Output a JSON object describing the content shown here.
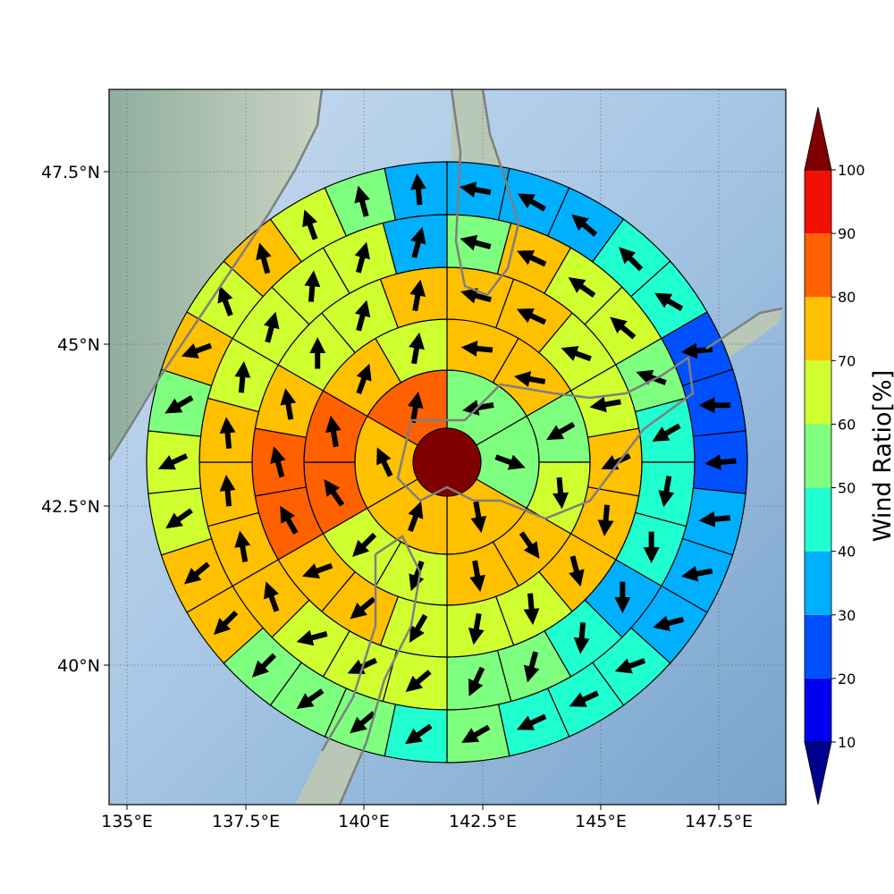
{
  "chart_data": {
    "type": "polar-sector-map",
    "colorbar": {
      "label": "Wind Ratio[%]",
      "ticks": [
        "10",
        "20",
        "30",
        "40",
        "50",
        "60",
        "70",
        "80",
        "90",
        "100"
      ],
      "levels": [
        0,
        10,
        20,
        30,
        40,
        50,
        60,
        70,
        80,
        90,
        100
      ],
      "colors": [
        "#00008f",
        "#0000f0",
        "#0050ff",
        "#00b0ff",
        "#20ffd0",
        "#7fff7f",
        "#d0ff30",
        "#ffc000",
        "#ff6000",
        "#f01000",
        "#800000"
      ]
    },
    "axes": {
      "lon_ticks": [
        "135°E",
        "137.5°E",
        "140°E",
        "142.5°E",
        "145°E",
        "147.5°E"
      ],
      "lon_values": [
        135,
        137.5,
        140,
        142.5,
        145,
        147.5
      ],
      "lat_ticks": [
        "40°N",
        "42.5°N",
        "45°N",
        "47.5°N"
      ],
      "lat_values": [
        40,
        42.5,
        45,
        47.5
      ],
      "lon_range": [
        134.6,
        148.9
      ],
      "lat_range": [
        37.8,
        48.8
      ],
      "grid": true
    },
    "center_value": 100,
    "rings": [
      {
        "n": 6,
        "values": [
          55,
          55,
          70,
          70,
          75,
          85
        ],
        "dirs": [
          260,
          110,
          170,
          20,
          -25,
          10
        ]
      },
      {
        "n": 12,
        "values": [
          70,
          70,
          55,
          60,
          70,
          75,
          60,
          65,
          80,
          80,
          70,
          65
        ],
        "dirs": [
          275,
          280,
          240,
          175,
          145,
          170,
          200,
          225,
          325,
          350,
          20,
          10
        ]
      },
      {
        "n": 18,
        "values": [
          70,
          70,
          65,
          65,
          70,
          75,
          70,
          65,
          65,
          65,
          70,
          75,
          80,
          80,
          70,
          65,
          65,
          70
        ],
        "dirs": [
          285,
          295,
          290,
          260,
          245,
          185,
          165,
          175,
          190,
          210,
          230,
          250,
          330,
          345,
          350,
          0,
          15,
          10
        ]
      },
      {
        "n": 24,
        "values": [
          55,
          75,
          65,
          60,
          50,
          45,
          45,
          40,
          35,
          45,
          50,
          55,
          60,
          60,
          65,
          75,
          70,
          70,
          75,
          65,
          65,
          60,
          65,
          30
        ],
        "dirs": [
          285,
          295,
          305,
          310,
          290,
          240,
          190,
          180,
          180,
          185,
          195,
          205,
          230,
          245,
          255,
          340,
          350,
          355,
          355,
          5,
          15,
          5,
          15,
          15
        ],
        "_comment": ""
      },
      {
        "n": 30,
        "values": [
          30,
          30,
          30,
          45,
          45,
          20,
          20,
          20,
          30,
          30,
          30,
          40,
          45,
          45,
          55,
          45,
          50,
          55,
          55,
          70,
          70,
          65,
          60,
          50,
          75,
          65,
          70,
          60,
          50,
          30
        ],
        "dirs": [
          280,
          300,
          310,
          315,
          300,
          265,
          270,
          265,
          265,
          260,
          255,
          250,
          245,
          245,
          240,
          235,
          230,
          235,
          225,
          225,
          230,
          235,
          245,
          240,
          250,
          340,
          345,
          340,
          345,
          355
        ]
      }
    ]
  }
}
